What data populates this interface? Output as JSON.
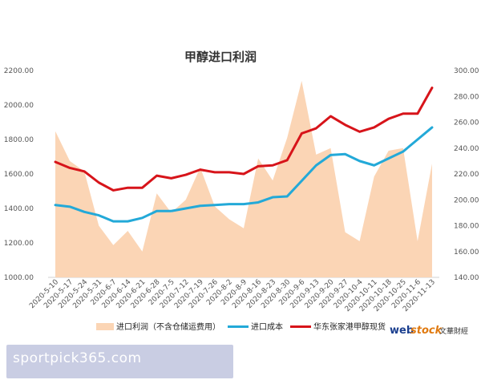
{
  "chart_data": {
    "type": "line",
    "title": "甲醇进口利润",
    "x": [
      "2020-5-10",
      "2020-5-17",
      "2020-5-24",
      "2020-5-31",
      "2020-6-7",
      "2020-6-14",
      "2020-6-21",
      "2020-6-28",
      "2020-7-5",
      "2020-7-12",
      "2020-7-19",
      "2020-7-26",
      "2020-8-2",
      "2020-8-9",
      "2020-8-16",
      "2020-8-23",
      "2020-8-30",
      "2020-9-6",
      "2020-9-13",
      "2020-9-20",
      "2020-9-27",
      "2020-10-4",
      "2020-10-11",
      "2020-10-18",
      "2020-10-25",
      "2020-11-6",
      "2020-11-13"
    ],
    "x_tick_labels": [
      "2020-5-10",
      "2020-5-17",
      "2020-5-24",
      "2020-5-31",
      "2020-6-7",
      "2020-6-14",
      "2020-6-21",
      "2020-6-28",
      "2020-7-5",
      "2020-7-12",
      "2020-7-19",
      "2020-7-26",
      "2020-8-2",
      "2020-8-9",
      "2020-8-16",
      "2020-8-23",
      "2020-8-30",
      "2020-9-6",
      "2020-9-13",
      "2020-9-20",
      "2020-9-27",
      "2020-10-4",
      "2020-10-11",
      "2020-10-18",
      "2020-10-25",
      "2020-11-6",
      "2020-11-13"
    ],
    "y_left": {
      "ylim": [
        1000,
        2200
      ],
      "ticks": [
        "1000.00",
        "1200.00",
        "1400.00",
        "1600.00",
        "1800.00",
        "2000.00",
        "2200.00"
      ]
    },
    "y_right": {
      "ylim": [
        140,
        300
      ],
      "ticks": [
        "140.00",
        "160.00",
        "180.00",
        "200.00",
        "220.00",
        "240.00",
        "260.00",
        "280.00",
        "300.00"
      ]
    },
    "series": [
      {
        "name": "进口利润（不含仓储运费用）",
        "kind": "area",
        "axis": "right",
        "color": "#fbd5b5",
        "values": [
          253,
          230,
          222,
          180,
          165,
          176,
          160,
          205,
          190,
          200,
          225,
          195,
          185,
          178,
          232,
          215,
          248,
          292,
          235,
          240,
          175,
          168,
          218,
          238,
          240,
          168,
          228
        ]
      },
      {
        "name": "进口成本",
        "kind": "line",
        "axis": "left",
        "color": "#23a9d8",
        "values": [
          1420,
          1410,
          1380,
          1360,
          1325,
          1325,
          1345,
          1385,
          1385,
          1400,
          1415,
          1420,
          1425,
          1425,
          1435,
          1465,
          1470,
          1560,
          1650,
          1710,
          1715,
          1675,
          1650,
          1690,
          1730,
          1800,
          1870
        ]
      },
      {
        "name": "华东张家港甲醇现货",
        "kind": "line",
        "axis": "left",
        "color": "#d7141a",
        "values": [
          1670,
          1635,
          1615,
          1550,
          1505,
          1520,
          1520,
          1590,
          1575,
          1595,
          1625,
          1610,
          1610,
          1600,
          1645,
          1650,
          1680,
          1835,
          1865,
          1935,
          1885,
          1845,
          1870,
          1920,
          1950,
          1950,
          2100
        ]
      }
    ],
    "legend": {
      "placement": "bottom"
    },
    "grid": false
  },
  "logo": {
    "text_web": "web",
    "text_stock": "stock",
    "text_cn": "文華財經"
  },
  "watermark": {
    "text": "sportpick365.com"
  }
}
